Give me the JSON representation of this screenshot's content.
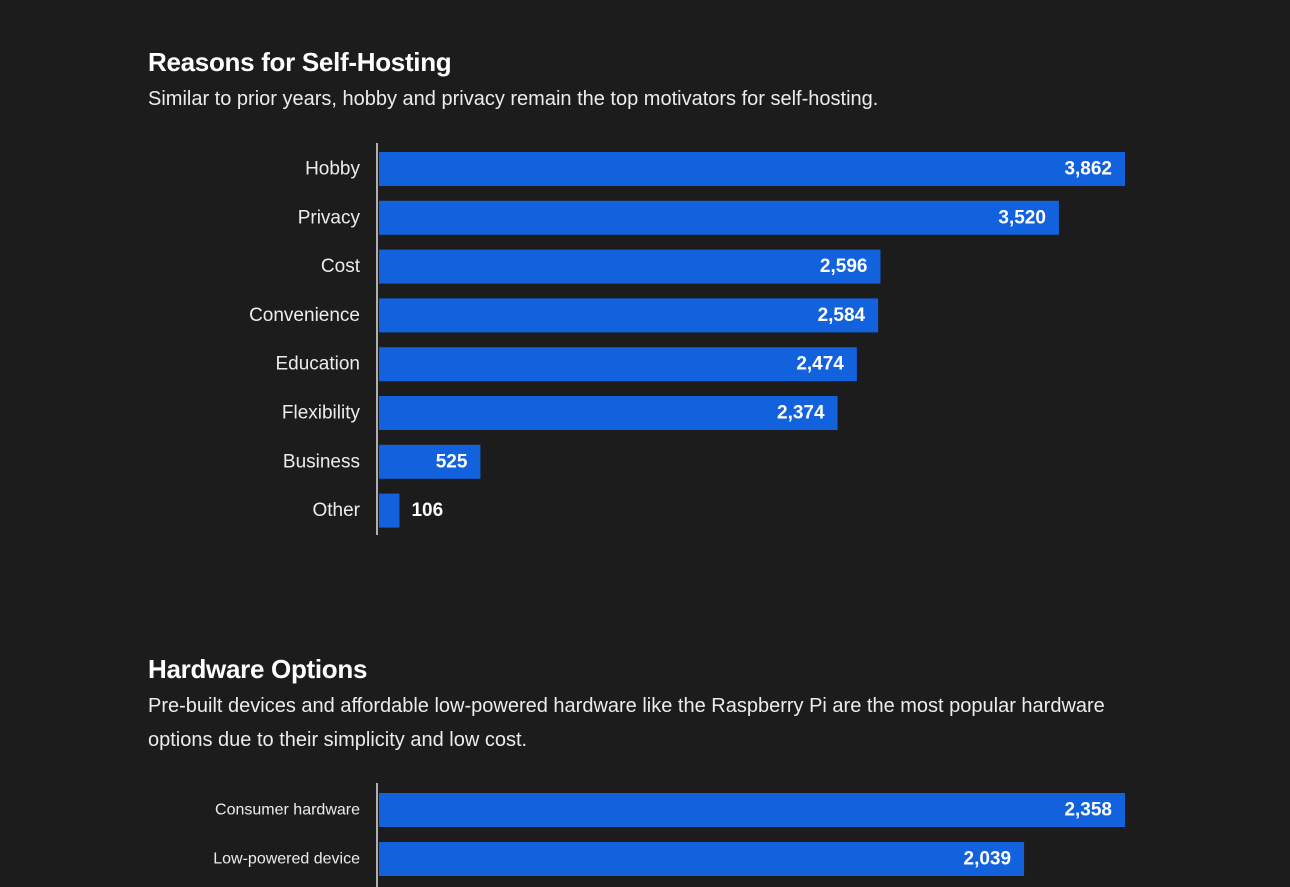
{
  "colors": {
    "background": "#1c1c1c",
    "bar": "#1261dd",
    "axis": "#e0e0e0",
    "text": "#ffffff"
  },
  "reasons": {
    "title": "Reasons for Self-Hosting",
    "subtitle": "Similar to prior years, hobby and privacy remain the top motivators for self-hosting."
  },
  "hardware": {
    "title": "Hardware Options",
    "subtitle": "Pre-built devices and affordable low-powered hardware like the Raspberry Pi are the most popular hardware options due to their simplicity and low cost."
  },
  "chart_data": [
    {
      "type": "bar",
      "orientation": "horizontal",
      "title": "Reasons for Self-Hosting",
      "categories": [
        "Hobby",
        "Privacy",
        "Cost",
        "Convenience",
        "Education",
        "Flexibility",
        "Business",
        "Other"
      ],
      "values": [
        3862,
        3520,
        2596,
        2584,
        2474,
        2374,
        525,
        106
      ],
      "value_labels": [
        "3,862",
        "3,520",
        "2,596",
        "2,584",
        "2,474",
        "2,374",
        "525",
        "106"
      ],
      "xlim": [
        0,
        3862
      ],
      "grid": false,
      "legend": "none"
    },
    {
      "type": "bar",
      "orientation": "horizontal",
      "title": "Hardware Options",
      "categories": [
        "Consumer hardware",
        "Low-powered device"
      ],
      "values": [
        2358,
        2039
      ],
      "value_labels": [
        "2,358",
        "2,039"
      ],
      "xlim": [
        0,
        2358
      ],
      "grid": false,
      "legend": "none"
    }
  ]
}
